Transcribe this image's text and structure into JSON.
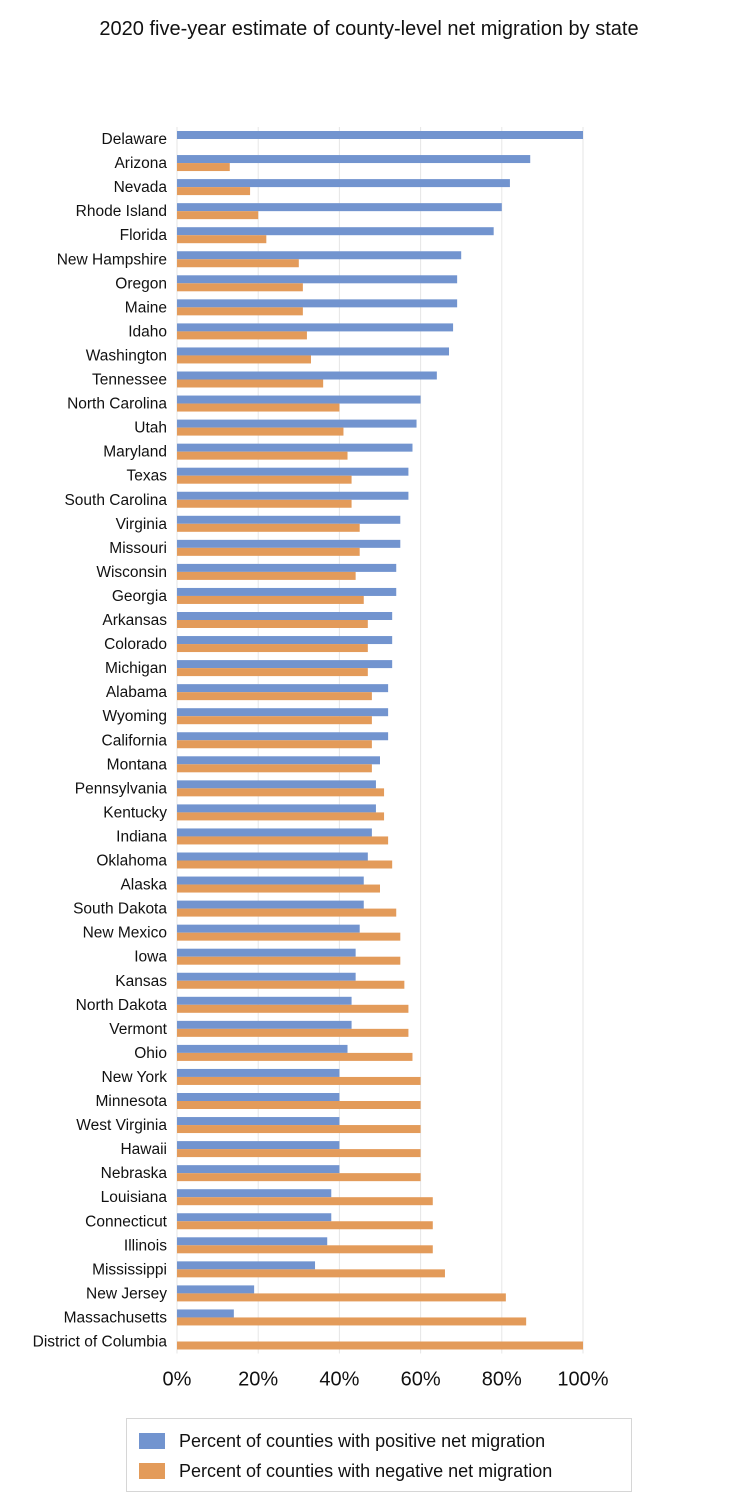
{
  "chart_data": {
    "type": "bar",
    "orientation": "horizontal",
    "title": "2020 five-year estimate of county-level net migration by state",
    "xlim": [
      0,
      100
    ],
    "x_ticks": [
      "0%",
      "20%",
      "40%",
      "60%",
      "80%",
      "100%"
    ],
    "x_tick_values": [
      0,
      20,
      40,
      60,
      80,
      100
    ],
    "grid": true,
    "legend_position": "bottom",
    "categories": [
      "Delaware",
      "Arizona",
      "Nevada",
      "Rhode Island",
      "Florida",
      "New Hampshire",
      "Oregon",
      "Maine",
      "Idaho",
      "Washington",
      "Tennessee",
      "North Carolina",
      "Utah",
      "Maryland",
      "Texas",
      "South Carolina",
      "Virginia",
      "Missouri",
      "Wisconsin",
      "Georgia",
      "Arkansas",
      "Colorado",
      "Michigan",
      "Alabama",
      "Wyoming",
      "California",
      "Montana",
      "Pennsylvania",
      "Kentucky",
      "Indiana",
      "Oklahoma",
      "Alaska",
      "South Dakota",
      "New Mexico",
      "Iowa",
      "Kansas",
      "North Dakota",
      "Vermont",
      "Ohio",
      "New York",
      "Minnesota",
      "West Virginia",
      "Hawaii",
      "Nebraska",
      "Louisiana",
      "Connecticut",
      "Illinois",
      "Mississippi",
      "New Jersey",
      "Massachusetts",
      "District of Columbia"
    ],
    "series": [
      {
        "name": "Percent of counties with positive net migration",
        "color": "#7294cf",
        "values": [
          100,
          87,
          82,
          80,
          78,
          70,
          69,
          69,
          68,
          67,
          64,
          60,
          59,
          58,
          57,
          57,
          55,
          55,
          54,
          54,
          53,
          53,
          53,
          52,
          52,
          52,
          50,
          49,
          49,
          48,
          47,
          46,
          46,
          45,
          44,
          44,
          43,
          43,
          42,
          40,
          40,
          40,
          40,
          40,
          38,
          38,
          37,
          34,
          19,
          14,
          0
        ]
      },
      {
        "name": "Percent of counties with negative net migration",
        "color": "#e39b5a",
        "values": [
          0,
          13,
          18,
          20,
          22,
          30,
          31,
          31,
          32,
          33,
          36,
          40,
          41,
          42,
          43,
          43,
          45,
          45,
          44,
          46,
          47,
          47,
          47,
          48,
          48,
          48,
          48,
          51,
          51,
          52,
          53,
          50,
          54,
          55,
          55,
          56,
          57,
          57,
          58,
          60,
          60,
          60,
          60,
          60,
          63,
          63,
          63,
          66,
          81,
          86,
          100
        ]
      }
    ]
  }
}
